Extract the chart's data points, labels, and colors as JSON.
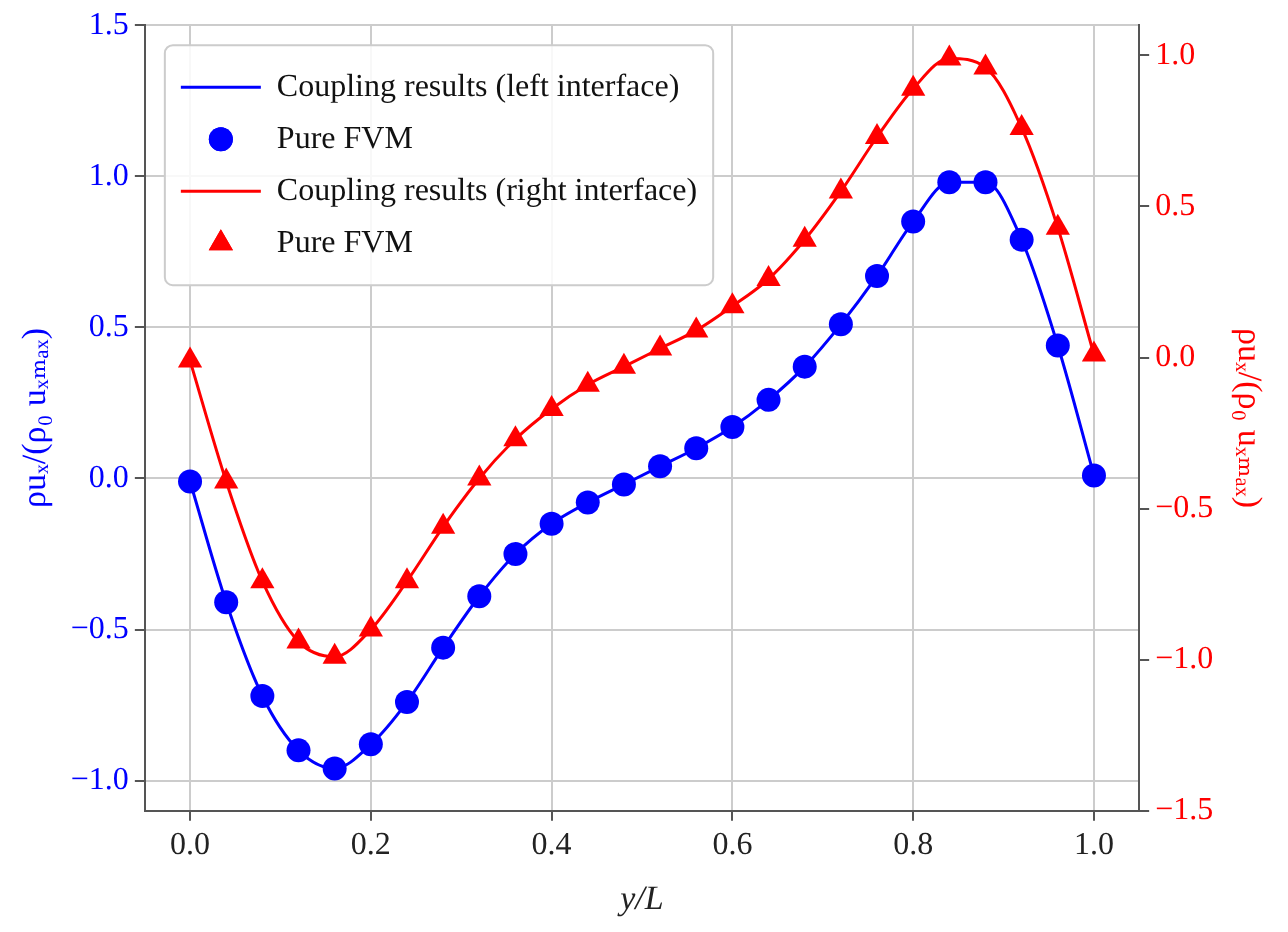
{
  "chart_data": {
    "type": "line",
    "xlabel": "y/L",
    "ylabel": "ρuₓ/(ρ₀ uₓₘₐₓ)",
    "y2label": "ρuₓ/(ρ₀ uₓₘₐₓ)",
    "x": [
      0,
      0.04,
      0.08,
      0.12,
      0.16,
      0.2,
      0.24,
      0.28,
      0.32,
      0.36,
      0.4,
      0.44,
      0.48,
      0.52,
      0.56,
      0.6,
      0.64,
      0.68,
      0.72,
      0.76,
      0.8,
      0.84,
      0.88,
      0.92,
      0.96,
      1.0
    ],
    "series": [
      {
        "name": "Coupling results (left interface)",
        "type": "line",
        "marker": "none",
        "color": "#0000ff",
        "values": [
          -0.01,
          -0.41,
          -0.72,
          -0.9,
          -0.96,
          -0.88,
          -0.74,
          -0.56,
          -0.39,
          -0.25,
          -0.15,
          -0.08,
          -0.02,
          0.04,
          0.1,
          0.17,
          0.26,
          0.37,
          0.51,
          0.67,
          0.85,
          0.98,
          0.98,
          0.79,
          0.44,
          0.01
        ]
      },
      {
        "name": "Pure FVM",
        "type": "scatter",
        "marker": "circle",
        "color": "#0000ff",
        "values": [
          -0.01,
          -0.41,
          -0.72,
          -0.9,
          -0.96,
          -0.88,
          -0.74,
          -0.56,
          -0.39,
          -0.25,
          -0.15,
          -0.08,
          -0.02,
          0.04,
          0.1,
          0.17,
          0.26,
          0.37,
          0.51,
          0.67,
          0.85,
          0.98,
          0.98,
          0.79,
          0.44,
          0.01
        ]
      },
      {
        "name": "Coupling results (right interface)",
        "type": "line",
        "marker": "none",
        "axis": "y2",
        "color": "#ff0000",
        "values": [
          -0.01,
          -0.41,
          -0.74,
          -0.94,
          -0.99,
          -0.9,
          -0.74,
          -0.56,
          -0.4,
          -0.27,
          -0.17,
          -0.09,
          -0.03,
          0.03,
          0.09,
          0.17,
          0.26,
          0.39,
          0.55,
          0.73,
          0.89,
          0.99,
          0.96,
          0.76,
          0.43,
          0.01
        ]
      },
      {
        "name": "Pure FVM",
        "type": "scatter",
        "marker": "triangle",
        "axis": "y2",
        "color": "#ff0000",
        "values": [
          -0.01,
          -0.41,
          -0.74,
          -0.94,
          -0.99,
          -0.9,
          -0.74,
          -0.56,
          -0.4,
          -0.27,
          -0.17,
          -0.09,
          -0.03,
          0.03,
          0.09,
          0.17,
          0.26,
          0.39,
          0.55,
          0.73,
          0.89,
          0.99,
          0.96,
          0.76,
          0.43,
          0.01
        ]
      }
    ],
    "xlim": [
      -0.05,
      1.05
    ],
    "xticks": [
      {
        "value": 0,
        "label": "0.0"
      },
      {
        "value": 0.2,
        "label": "0.2"
      },
      {
        "value": 0.4,
        "label": "0.4"
      },
      {
        "value": 0.6,
        "label": "0.6"
      },
      {
        "value": 0.8,
        "label": "0.8"
      },
      {
        "value": 1,
        "label": "1.0"
      }
    ],
    "ylim": [
      -1.1,
      1.5
    ],
    "yticks": [
      {
        "value": -1,
        "label": "−1.0"
      },
      {
        "value": -0.5,
        "label": "−0.5"
      },
      {
        "value": 0,
        "label": "0.0"
      },
      {
        "value": 0.5,
        "label": "0.5"
      },
      {
        "value": 1,
        "label": "1.0"
      },
      {
        "value": 1.5,
        "label": "1.5"
      }
    ],
    "y2lim": [
      -1.5,
      1.1
    ],
    "y2ticks": [
      {
        "value": -1.5,
        "label": "−1.5"
      },
      {
        "value": -1,
        "label": "−1.0"
      },
      {
        "value": -0.5,
        "label": "−0.5"
      },
      {
        "value": 0,
        "label": "0.0"
      },
      {
        "value": 0.5,
        "label": "0.5"
      },
      {
        "value": 1,
        "label": "1.0"
      }
    ],
    "grid": true,
    "legend": "top left",
    "line_style": "solid"
  }
}
